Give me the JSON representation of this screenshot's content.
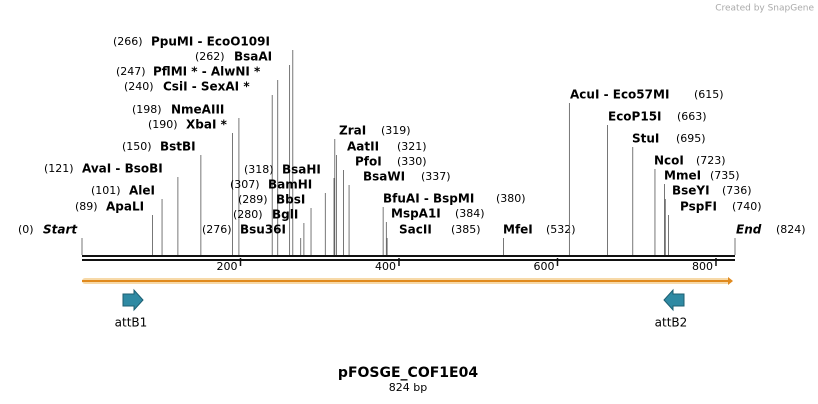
{
  "watermark": "Created by SnapGene",
  "title": "pFOSGE_COF1E04",
  "subtitle": "824 bp",
  "ticks": [
    200,
    400,
    600,
    800
  ],
  "sites": [
    {
      "name": "Start",
      "position": {
        "value": 0,
        "label": "(0)"
      }
    },
    {
      "name": "ApaLI",
      "position": {
        "value": 89,
        "label": "(89)"
      }
    },
    {
      "name": "AleI",
      "position": {
        "value": 101,
        "label": "(101)"
      }
    },
    {
      "name": "AvaI  -  BsoBI",
      "position": {
        "value": 121,
        "label": "(121)"
      }
    },
    {
      "name": "BstBI",
      "position": {
        "value": 150,
        "label": "(150)"
      }
    },
    {
      "name": "XbaI *",
      "position": {
        "value": 190,
        "label": "(190)"
      }
    },
    {
      "name": "NmeAIII",
      "position": {
        "value": 198,
        "label": "(198)"
      }
    },
    {
      "name": "CsiI  -  SexAI *",
      "position": {
        "value": 240,
        "label": "(240)"
      }
    },
    {
      "name": "PflMI *  -  AlwNI *",
      "position": {
        "value": 247,
        "label": "(247)"
      }
    },
    {
      "name": "BsaAI",
      "position": {
        "value": 262,
        "label": "(262)"
      }
    },
    {
      "name": "PpuMI  -  EcoO109I",
      "position": {
        "value": 266,
        "label": "(266)"
      }
    },
    {
      "name": "Bsu36I",
      "position": {
        "value": 276,
        "label": "(276)"
      }
    },
    {
      "name": "BglI",
      "position": {
        "value": 280,
        "label": "(280)"
      }
    },
    {
      "name": "BbsI",
      "position": {
        "value": 289,
        "label": "(289)"
      }
    },
    {
      "name": "BamHI",
      "position": {
        "value": 307,
        "label": "(307)"
      }
    },
    {
      "name": "BsaHI",
      "position": {
        "value": 318,
        "label": "(318)"
      }
    },
    {
      "name": "ZraI",
      "position": {
        "value": 319,
        "label": "(319)"
      }
    },
    {
      "name": "AatII",
      "position": {
        "value": 321,
        "label": "(321)"
      }
    },
    {
      "name": "PfoI",
      "position": {
        "value": 330,
        "label": "(330)"
      }
    },
    {
      "name": "BsaWI",
      "position": {
        "value": 337,
        "label": "(337)"
      }
    },
    {
      "name": "BfuAI  -  BspMI",
      "position": {
        "value": 380,
        "label": "(380)"
      }
    },
    {
      "name": "MspA1I",
      "position": {
        "value": 384,
        "label": "(384)"
      }
    },
    {
      "name": "SacII",
      "position": {
        "value": 385,
        "label": "(385)"
      }
    },
    {
      "name": "MfeI",
      "position": {
        "value": 532,
        "label": "(532)"
      }
    },
    {
      "name": "AcuI  -  Eco57MI",
      "position": {
        "value": 615,
        "label": "(615)"
      }
    },
    {
      "name": "EcoP15I",
      "position": {
        "value": 663,
        "label": "(663)"
      }
    },
    {
      "name": "StuI",
      "position": {
        "value": 695,
        "label": "(695)"
      }
    },
    {
      "name": "NcoI",
      "position": {
        "value": 723,
        "label": "(723)"
      }
    },
    {
      "name": "MmeI",
      "position": {
        "value": 735,
        "label": "(735)"
      }
    },
    {
      "name": "BseYI",
      "position": {
        "value": 736,
        "label": "(736)"
      }
    },
    {
      "name": "PspFI",
      "position": {
        "value": 740,
        "label": "(740)"
      }
    },
    {
      "name": "End",
      "position": {
        "value": 824,
        "label": "(824)"
      }
    }
  ],
  "features": [
    {
      "label": "attB1"
    },
    {
      "label": "attB2"
    }
  ]
}
